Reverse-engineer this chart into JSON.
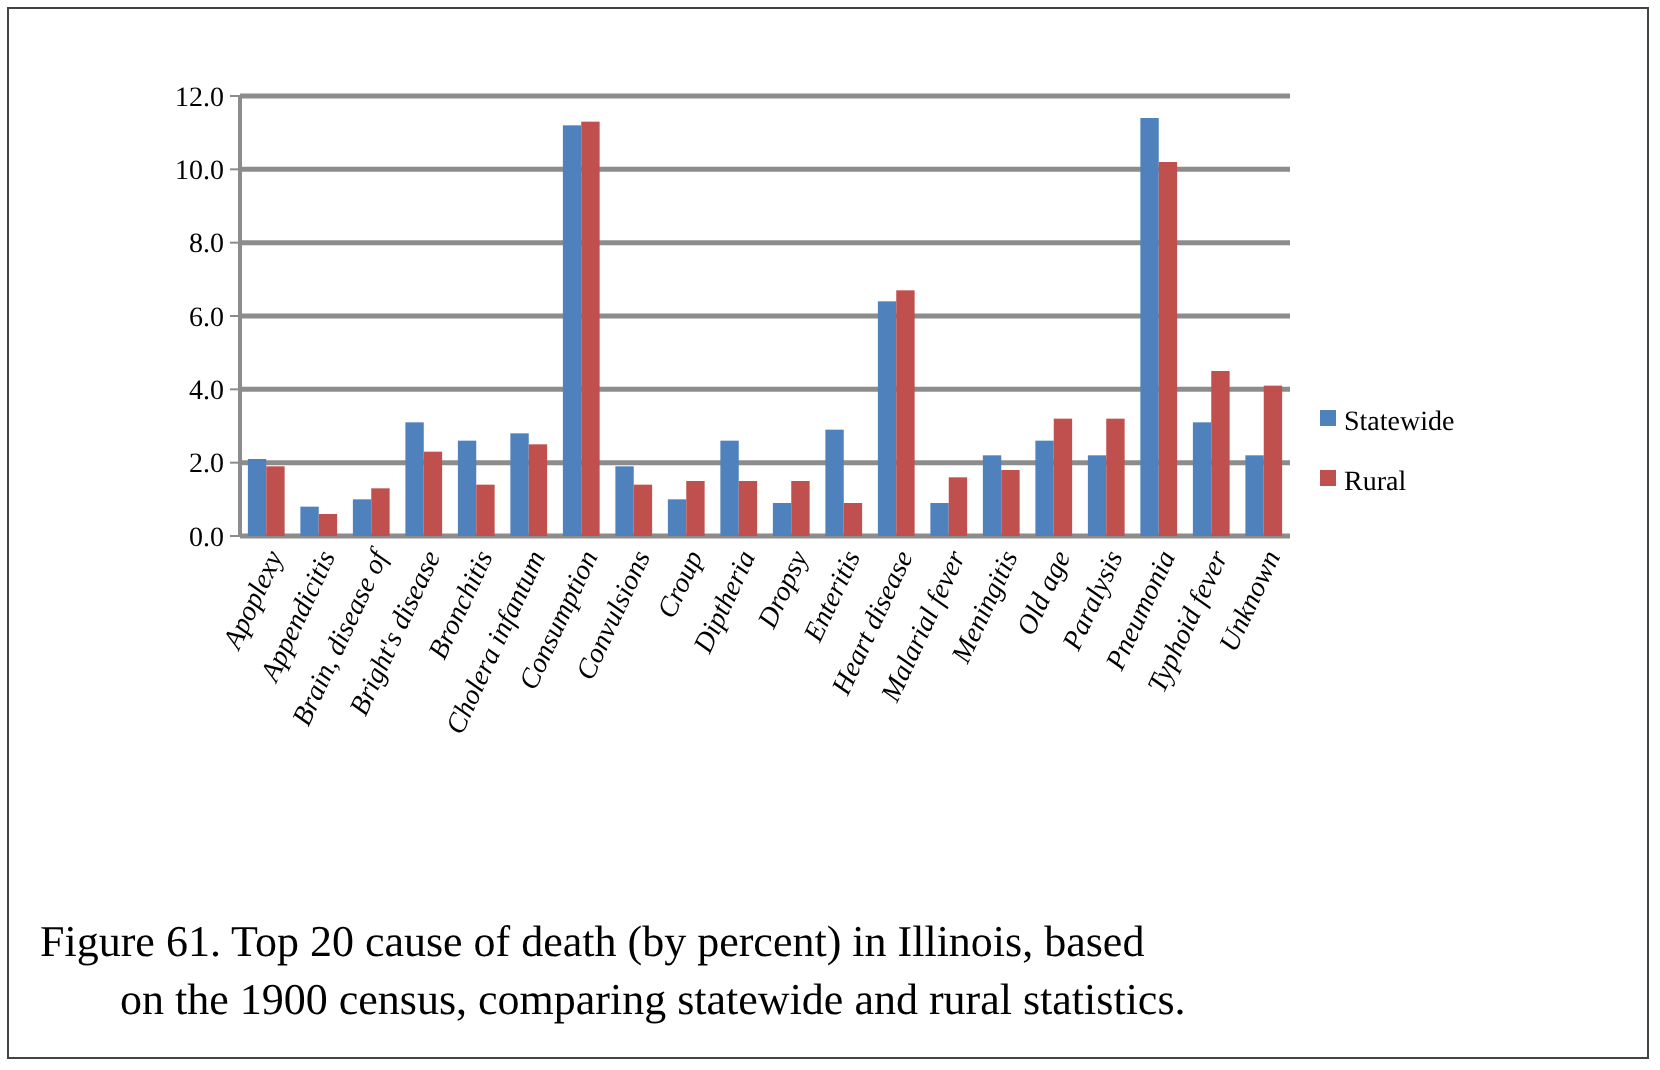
{
  "chart_data": {
    "type": "bar",
    "categories": [
      "Apoplexy",
      "Appendicitis",
      "Brain, disease of",
      "Bright's disease",
      "Bronchitis",
      "Cholera infantum",
      "Consumption",
      "Convulsions",
      "Croup",
      "Diptheria",
      "Dropsy",
      "Enteritis",
      "Heart disease",
      "Malarial fever",
      "Meningitis",
      "Old age",
      "Paralysis",
      "Pneumonia",
      "Typhoid fever",
      "Unknown"
    ],
    "series": [
      {
        "name": "Statewide",
        "color": "#4f81bd",
        "values": [
          2.1,
          0.8,
          1.0,
          3.1,
          2.6,
          2.8,
          11.2,
          1.9,
          1.0,
          2.6,
          0.9,
          2.9,
          6.4,
          0.9,
          2.2,
          2.6,
          2.2,
          11.4,
          3.1,
          2.2
        ]
      },
      {
        "name": "Rural",
        "color": "#c0504d",
        "values": [
          1.9,
          0.6,
          1.3,
          2.3,
          1.4,
          2.5,
          11.3,
          1.4,
          1.5,
          1.5,
          1.5,
          0.9,
          6.7,
          1.6,
          1.8,
          3.2,
          3.2,
          10.2,
          4.5,
          4.1
        ]
      }
    ],
    "ylim": [
      0,
      12
    ],
    "yticks": [
      {
        "value": 0,
        "label": "0.0"
      },
      {
        "value": 2,
        "label": "2.0"
      },
      {
        "value": 4,
        "label": "4.0"
      },
      {
        "value": 6,
        "label": "6.0"
      },
      {
        "value": 8,
        "label": "8.0"
      },
      {
        "value": 10,
        "label": "10.0"
      },
      {
        "value": 12,
        "label": "12.0"
      }
    ],
    "grid": "y",
    "legend": "right",
    "annotations": [
      "Figure 61. Top 20 cause of death (by percent) in Illinois, based on the 1900 census, comparing statewide and rural statistics."
    ]
  }
}
